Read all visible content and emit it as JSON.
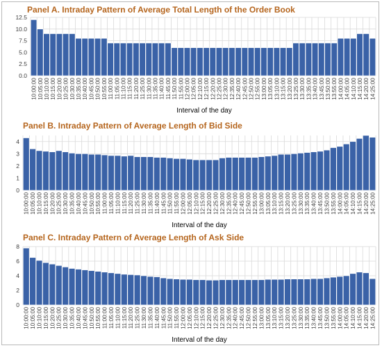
{
  "chart_data": [
    {
      "type": "bar",
      "title": "Panel A. Intraday Pattern of Average Total Length of the Order Book",
      "xlabel": "Interval of the day",
      "ylabel": "",
      "ylim": [
        0,
        12.5
      ],
      "yticks": [
        "0.0",
        "2.5",
        "5.0",
        "7.5",
        "10.0",
        "12.5"
      ],
      "grid": true,
      "categories": [
        "10:00:00",
        "10:05:00",
        "10:10:00",
        "10:15:00",
        "10:20:00",
        "10:25:00",
        "10:30:00",
        "10:35:00",
        "10:40:00",
        "10:45:00",
        "10:50:00",
        "10:55:00",
        "11:00:00",
        "11:05:00",
        "11:10:00",
        "11:15:00",
        "11:20:00",
        "11:25:00",
        "11:30:00",
        "11:35:00",
        "11:40:00",
        "11:45:00",
        "11:50:00",
        "11:55:00",
        "12:00:00",
        "12:05:00",
        "12:10:00",
        "12:15:00",
        "12:20:00",
        "12:25:00",
        "12:30:00",
        "12:35:00",
        "12:40:00",
        "12:45:00",
        "12:50:00",
        "12:55:00",
        "13:00:00",
        "13:05:00",
        "13:10:00",
        "13:15:00",
        "13:20:00",
        "13:25:00",
        "13:30:00",
        "13:35:00",
        "13:40:00",
        "13:45:00",
        "13:50:00",
        "13:55:00",
        "14:00:00",
        "14:05:00",
        "14:10:00",
        "14:15:00",
        "14:20:00",
        "14:25:00"
      ],
      "values": [
        12,
        10,
        9,
        9,
        9,
        9,
        9,
        8,
        8,
        8,
        8,
        8,
        7,
        7,
        7,
        7,
        7,
        7,
        7,
        7,
        7,
        7,
        6,
        6,
        6,
        6,
        6,
        6,
        6,
        6,
        6,
        6,
        6,
        6,
        6,
        6,
        6,
        6,
        6,
        6,
        6,
        7,
        7,
        7,
        7,
        7,
        7,
        7,
        8,
        8,
        8,
        9,
        9,
        8
      ]
    },
    {
      "type": "bar",
      "title": "Panel B. Intraday Pattern of Average Length of Bid Side",
      "xlabel": "Interval of the day",
      "ylabel": "",
      "ylim": [
        0,
        4.5
      ],
      "yticks": [
        "0",
        "1",
        "2",
        "3",
        "4"
      ],
      "grid": true,
      "categories": [
        "10:00:00",
        "10:05:00",
        "10:10:00",
        "10:15:00",
        "10:20:00",
        "10:25:00",
        "10:30:00",
        "10:35:00",
        "10:40:00",
        "10:45:00",
        "10:50:00",
        "10:55:00",
        "11:00:00",
        "11:05:00",
        "11:10:00",
        "11:15:00",
        "11:20:00",
        "11:25:00",
        "11:30:00",
        "11:35:00",
        "11:40:00",
        "11:45:00",
        "11:50:00",
        "11:55:00",
        "12:00:00",
        "12:05:00",
        "12:10:00",
        "12:15:00",
        "12:20:00",
        "12:25:00",
        "12:30:00",
        "12:35:00",
        "12:40:00",
        "12:45:00",
        "12:50:00",
        "12:55:00",
        "13:00:00",
        "13:05:00",
        "13:10:00",
        "13:15:00",
        "13:20:00",
        "13:25:00",
        "13:30:00",
        "13:35:00",
        "13:40:00",
        "13:45:00",
        "13:50:00",
        "13:55:00",
        "14:00:00",
        "14:05:00",
        "14:10:00",
        "14:15:00",
        "14:20:00",
        "14:25:00"
      ],
      "values": [
        4.3,
        3.4,
        3.25,
        3.2,
        3.15,
        3.25,
        3.15,
        3.05,
        3.0,
        3.0,
        2.95,
        2.95,
        2.9,
        2.85,
        2.85,
        2.8,
        2.85,
        2.75,
        2.75,
        2.75,
        2.7,
        2.7,
        2.65,
        2.6,
        2.6,
        2.55,
        2.5,
        2.5,
        2.5,
        2.5,
        2.65,
        2.7,
        2.7,
        2.7,
        2.7,
        2.7,
        2.75,
        2.8,
        2.85,
        2.95,
        2.95,
        3.0,
        3.05,
        3.1,
        3.15,
        3.2,
        3.3,
        3.5,
        3.6,
        3.8,
        4.0,
        4.25,
        4.5,
        4.35
      ]
    },
    {
      "type": "bar",
      "title": "Panel C. Intraday Pattern of Average Length of Ask Side",
      "xlabel": "Interval of the day",
      "ylabel": "",
      "ylim": [
        0,
        8
      ],
      "yticks": [
        "0",
        "2",
        "4",
        "6",
        "8"
      ],
      "grid": true,
      "categories": [
        "10:00:00",
        "10:05:00",
        "10:10:00",
        "10:15:00",
        "10:20:00",
        "10:25:00",
        "10:30:00",
        "10:35:00",
        "10:40:00",
        "10:45:00",
        "10:50:00",
        "10:55:00",
        "11:00:00",
        "11:05:00",
        "11:10:00",
        "11:15:00",
        "11:20:00",
        "11:25:00",
        "11:30:00",
        "11:35:00",
        "11:40:00",
        "11:45:00",
        "11:50:00",
        "11:55:00",
        "12:00:00",
        "12:05:00",
        "12:10:00",
        "12:15:00",
        "12:20:00",
        "12:25:00",
        "12:30:00",
        "12:35:00",
        "12:40:00",
        "12:45:00",
        "12:50:00",
        "12:55:00",
        "13:00:00",
        "13:05:00",
        "13:10:00",
        "13:15:00",
        "13:20:00",
        "13:25:00",
        "13:30:00",
        "13:35:00",
        "13:40:00",
        "13:45:00",
        "13:50:00",
        "13:55:00",
        "14:00:00",
        "14:05:00",
        "14:10:00",
        "14:15:00",
        "14:20:00",
        "14:25:00"
      ],
      "values": [
        7.8,
        6.5,
        6.1,
        5.8,
        5.6,
        5.4,
        5.2,
        5.0,
        4.9,
        4.8,
        4.7,
        4.6,
        4.5,
        4.4,
        4.3,
        4.2,
        4.15,
        4.1,
        4.0,
        3.9,
        3.85,
        3.7,
        3.6,
        3.55,
        3.5,
        3.5,
        3.45,
        3.45,
        3.4,
        3.4,
        3.45,
        3.45,
        3.45,
        3.45,
        3.45,
        3.45,
        3.45,
        3.5,
        3.5,
        3.5,
        3.55,
        3.55,
        3.55,
        3.55,
        3.6,
        3.6,
        3.7,
        3.8,
        3.9,
        4.0,
        4.3,
        4.5,
        4.4,
        3.6
      ]
    }
  ]
}
